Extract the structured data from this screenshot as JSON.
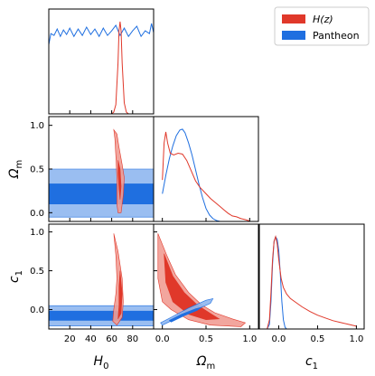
{
  "chart_data": {
    "type": "corner",
    "legend": {
      "placement": "top-right",
      "entries": [
        {
          "label": "H(z)",
          "color": "#e0382a"
        },
        {
          "label": "Pantheon",
          "color": "#1f6fe0"
        }
      ]
    },
    "parameters": [
      {
        "key": "H0",
        "label_base": "H",
        "label_sub": "0",
        "range": [
          0,
          100
        ],
        "ticks": [
          20,
          40,
          60,
          80
        ],
        "tick_labels": [
          "20",
          "40",
          "60",
          "80"
        ]
      },
      {
        "key": "Om",
        "label_base": "Ω",
        "label_sub": "m",
        "range": [
          -0.1,
          1.1
        ],
        "ticks": [
          0.0,
          0.5,
          1.0
        ],
        "tick_labels": [
          "0.0",
          "0.5",
          "1.0"
        ]
      },
      {
        "key": "c1",
        "label_base": "c",
        "label_sub": "1",
        "range": [
          -0.25,
          1.1
        ],
        "ticks": [
          0.0,
          0.5,
          1.0
        ],
        "tick_labels": [
          "0.0",
          "0.5",
          "1.0"
        ]
      }
    ],
    "marginals": {
      "H0": {
        "H(z)": [
          [
            60,
            0.0
          ],
          [
            62,
            0.02
          ],
          [
            64,
            0.1
          ],
          [
            66,
            0.55
          ],
          [
            67,
            0.9
          ],
          [
            68,
            1.0
          ],
          [
            69,
            0.9
          ],
          [
            70,
            0.55
          ],
          [
            72,
            0.12
          ],
          [
            74,
            0.02
          ],
          [
            76,
            0.0
          ]
        ],
        "Pantheon": [
          [
            0,
            0.75
          ],
          [
            2,
            0.87
          ],
          [
            5,
            0.85
          ],
          [
            8,
            0.92
          ],
          [
            11,
            0.84
          ],
          [
            14,
            0.91
          ],
          [
            17,
            0.86
          ],
          [
            20,
            0.93
          ],
          [
            24,
            0.84
          ],
          [
            28,
            0.92
          ],
          [
            32,
            0.85
          ],
          [
            36,
            0.94
          ],
          [
            40,
            0.86
          ],
          [
            44,
            0.92
          ],
          [
            48,
            0.84
          ],
          [
            52,
            0.93
          ],
          [
            56,
            0.85
          ],
          [
            60,
            0.9
          ],
          [
            64,
            0.96
          ],
          [
            68,
            0.85
          ],
          [
            72,
            0.93
          ],
          [
            76,
            0.84
          ],
          [
            80,
            0.9
          ],
          [
            84,
            0.95
          ],
          [
            88,
            0.84
          ],
          [
            92,
            0.9
          ],
          [
            96,
            0.87
          ],
          [
            98,
            0.98
          ],
          [
            100,
            0.88
          ]
        ]
      },
      "Om": {
        "H(z)": [
          [
            0.0,
            0.45
          ],
          [
            0.02,
            0.85
          ],
          [
            0.04,
            0.97
          ],
          [
            0.06,
            0.85
          ],
          [
            0.09,
            0.74
          ],
          [
            0.13,
            0.72
          ],
          [
            0.18,
            0.74
          ],
          [
            0.23,
            0.73
          ],
          [
            0.28,
            0.66
          ],
          [
            0.33,
            0.55
          ],
          [
            0.38,
            0.44
          ],
          [
            0.43,
            0.37
          ],
          [
            0.5,
            0.3
          ],
          [
            0.55,
            0.25
          ],
          [
            0.6,
            0.21
          ],
          [
            0.65,
            0.17
          ],
          [
            0.7,
            0.13
          ],
          [
            0.75,
            0.09
          ],
          [
            0.8,
            0.06
          ],
          [
            0.85,
            0.05
          ],
          [
            0.9,
            0.03
          ],
          [
            0.95,
            0.02
          ],
          [
            1.0,
            0.005
          ]
        ],
        "Pantheon": [
          [
            0.0,
            0.3
          ],
          [
            0.04,
            0.5
          ],
          [
            0.08,
            0.68
          ],
          [
            0.12,
            0.82
          ],
          [
            0.16,
            0.93
          ],
          [
            0.2,
            0.99
          ],
          [
            0.23,
            1.0
          ],
          [
            0.26,
            0.96
          ],
          [
            0.3,
            0.85
          ],
          [
            0.34,
            0.72
          ],
          [
            0.38,
            0.56
          ],
          [
            0.42,
            0.4
          ],
          [
            0.46,
            0.26
          ],
          [
            0.5,
            0.14
          ],
          [
            0.54,
            0.07
          ],
          [
            0.58,
            0.03
          ],
          [
            0.62,
            0.01
          ],
          [
            0.66,
            0.0
          ]
        ]
      },
      "c1": {
        "H(z)": [
          [
            -0.15,
            0.0
          ],
          [
            -0.12,
            0.1
          ],
          [
            -0.1,
            0.4
          ],
          [
            -0.08,
            0.75
          ],
          [
            -0.06,
            0.95
          ],
          [
            -0.04,
            1.0
          ],
          [
            -0.02,
            0.92
          ],
          [
            0.0,
            0.75
          ],
          [
            0.03,
            0.55
          ],
          [
            0.06,
            0.45
          ],
          [
            0.1,
            0.38
          ],
          [
            0.15,
            0.33
          ],
          [
            0.2,
            0.3
          ],
          [
            0.3,
            0.24
          ],
          [
            0.4,
            0.19
          ],
          [
            0.5,
            0.15
          ],
          [
            0.6,
            0.12
          ],
          [
            0.7,
            0.09
          ],
          [
            0.8,
            0.07
          ],
          [
            0.9,
            0.05
          ],
          [
            1.0,
            0.03
          ]
        ],
        "Pantheon": [
          [
            -0.15,
            0.0
          ],
          [
            -0.12,
            0.05
          ],
          [
            -0.1,
            0.3
          ],
          [
            -0.08,
            0.7
          ],
          [
            -0.06,
            0.95
          ],
          [
            -0.04,
            1.0
          ],
          [
            -0.02,
            0.97
          ],
          [
            0.0,
            0.85
          ],
          [
            0.02,
            0.6
          ],
          [
            0.04,
            0.3
          ],
          [
            0.06,
            0.1
          ],
          [
            0.08,
            0.02
          ],
          [
            0.1,
            0.0
          ]
        ]
      }
    },
    "contours": {
      "Om_vs_H0": {
        "Pantheon": {
          "outer": [
            [
              0,
              0.5
            ],
            [
              100,
              0.5
            ],
            [
              100,
              -0.05
            ],
            [
              0,
              -0.05
            ]
          ],
          "inner": [
            [
              0,
              0.33
            ],
            [
              100,
              0.33
            ],
            [
              100,
              0.1
            ],
            [
              0,
              0.1
            ]
          ]
        },
        "H(z)": {
          "outer": [
            [
              62,
              0.95
            ],
            [
              63,
              0.85
            ],
            [
              64,
              0.65
            ],
            [
              65,
              0.4
            ],
            [
              65,
              0.1
            ],
            [
              66,
              0.0
            ],
            [
              69,
              0.0
            ],
            [
              71,
              0.2
            ],
            [
              72,
              0.4
            ],
            [
              70,
              0.55
            ],
            [
              67,
              0.75
            ],
            [
              65,
              0.9
            ]
          ],
          "inner": [
            [
              66,
              0.6
            ],
            [
              68,
              0.5
            ],
            [
              69,
              0.3
            ],
            [
              68,
              0.15
            ],
            [
              67,
              0.28
            ],
            [
              66,
              0.45
            ]
          ]
        }
      },
      "c1_vs_H0": {
        "Pantheon": {
          "outer": [
            [
              0,
              0.05
            ],
            [
              100,
              0.05
            ],
            [
              100,
              -0.21
            ],
            [
              0,
              -0.21
            ]
          ],
          "inner": [
            [
              0,
              -0.02
            ],
            [
              100,
              -0.02
            ],
            [
              100,
              -0.14
            ],
            [
              0,
              -0.14
            ]
          ]
        },
        "H(z)": {
          "outer": [
            [
              62,
              0.98
            ],
            [
              64,
              0.7
            ],
            [
              65,
              0.4
            ],
            [
              64,
              0.2
            ],
            [
              62,
              0.0
            ],
            [
              61,
              -0.15
            ],
            [
              65,
              -0.2
            ],
            [
              70,
              -0.1
            ],
            [
              71,
              0.1
            ],
            [
              70,
              0.4
            ],
            [
              66,
              0.75
            ]
          ],
          "inner": [
            [
              68,
              0.5
            ],
            [
              70,
              0.2
            ],
            [
              69,
              -0.05
            ],
            [
              66,
              -0.12
            ],
            [
              67,
              0.05
            ],
            [
              67,
              0.3
            ]
          ]
        }
      },
      "c1_vs_Om": {
        "H(z)": {
          "outer": [
            [
              -0.05,
              0.98
            ],
            [
              0.05,
              0.7
            ],
            [
              0.15,
              0.45
            ],
            [
              0.3,
              0.22
            ],
            [
              0.45,
              0.06
            ],
            [
              0.6,
              -0.04
            ],
            [
              0.8,
              -0.12
            ],
            [
              0.95,
              -0.17
            ],
            [
              0.9,
              -0.22
            ],
            [
              0.55,
              -0.2
            ],
            [
              0.3,
              -0.13
            ],
            [
              0.1,
              0.0
            ],
            [
              0.0,
              0.1
            ],
            [
              -0.05,
              0.4
            ]
          ],
          "inner": [
            [
              0.02,
              0.72
            ],
            [
              0.12,
              0.43
            ],
            [
              0.25,
              0.22
            ],
            [
              0.4,
              0.06
            ],
            [
              0.55,
              -0.05
            ],
            [
              0.65,
              -0.12
            ],
            [
              0.5,
              -0.13
            ],
            [
              0.3,
              -0.06
            ],
            [
              0.12,
              0.1
            ],
            [
              0.04,
              0.35
            ]
          ]
        },
        "Pantheon": {
          "outer": [
            [
              0.0,
              -0.2
            ],
            [
              0.15,
              -0.12
            ],
            [
              0.35,
              -0.02
            ],
            [
              0.55,
              0.08
            ],
            [
              0.58,
              0.14
            ],
            [
              0.5,
              0.12
            ],
            [
              0.3,
              0.02
            ],
            [
              0.1,
              -0.1
            ],
            [
              -0.02,
              -0.17
            ]
          ],
          "inner": [
            [
              0.1,
              -0.16
            ],
            [
              0.25,
              -0.08
            ],
            [
              0.4,
              -0.01
            ],
            [
              0.45,
              0.03
            ],
            [
              0.38,
              0.01
            ],
            [
              0.22,
              -0.06
            ],
            [
              0.08,
              -0.14
            ]
          ]
        }
      }
    }
  }
}
